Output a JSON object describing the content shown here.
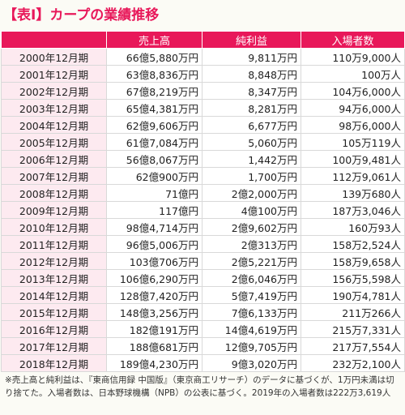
{
  "title": "【表Ⅰ】カープの業績推移",
  "headers": [
    "",
    "売上高",
    "純利益",
    "入場者数"
  ],
  "rows": [
    {
      "year": "2000年12月期",
      "sales": "66億5,880万円",
      "profit": "9,811万円",
      "attendance": "110万9,000人"
    },
    {
      "year": "2001年12月期",
      "sales": "63億8,836万円",
      "profit": "8,848万円",
      "attendance": "100万人"
    },
    {
      "year": "2002年12月期",
      "sales": "67億8,219万円",
      "profit": "8,347万円",
      "attendance": "104万6,000人"
    },
    {
      "year": "2003年12月期",
      "sales": "65億4,381万円",
      "profit": "8,281万円",
      "attendance": "94万6,000人"
    },
    {
      "year": "2004年12月期",
      "sales": "62億9,606万円",
      "profit": "6,677万円",
      "attendance": "98万6,000人"
    },
    {
      "year": "2005年12月期",
      "sales": "61億7,084万円",
      "profit": "5,060万円",
      "attendance": "105万119人"
    },
    {
      "year": "2006年12月期",
      "sales": "56億8,067万円",
      "profit": "1,442万円",
      "attendance": "100万9,481人"
    },
    {
      "year": "2007年12月期",
      "sales": "62億900万円",
      "profit": "1,700万円",
      "attendance": "112万9,061人"
    },
    {
      "year": "2008年12月期",
      "sales": "71億円",
      "profit": "2億2,000万円",
      "attendance": "139万680人"
    },
    {
      "year": "2009年12月期",
      "sales": "117億円",
      "profit": "4億100万円",
      "attendance": "187万3,046人"
    },
    {
      "year": "2010年12月期",
      "sales": "98億4,714万円",
      "profit": "2億9,602万円",
      "attendance": "160万93人"
    },
    {
      "year": "2011年12月期",
      "sales": "96億5,006万円",
      "profit": "2億313万円",
      "attendance": "158万2,524人"
    },
    {
      "year": "2012年12月期",
      "sales": "103億706万円",
      "profit": "2億5,221万円",
      "attendance": "158万9,658人"
    },
    {
      "year": "2013年12月期",
      "sales": "106億6,290万円",
      "profit": "2億6,046万円",
      "attendance": "156万5,598人"
    },
    {
      "year": "2014年12月期",
      "sales": "128億7,420万円",
      "profit": "5億7,419万円",
      "attendance": "190万4,781人"
    },
    {
      "year": "2015年12月期",
      "sales": "148億3,256万円",
      "profit": "7億6,133万円",
      "attendance": "211万266人"
    },
    {
      "year": "2016年12月期",
      "sales": "182億191万円",
      "profit": "14億4,619万円",
      "attendance": "215万7,331人"
    },
    {
      "year": "2017年12月期",
      "sales": "188億681万円",
      "profit": "12億9,705万円",
      "attendance": "217万7,554人"
    },
    {
      "year": "2018年12月期",
      "sales": "189億4,230万円",
      "profit": "9億3,020万円",
      "attendance": "232万2,100人"
    }
  ],
  "note": "※売上高と純利益は、『東商信用録 中国版』（東京商工リサーチ）のデータに基づくが、1万円未満は切り捨てた。入場者数は、日本野球機構（NPB）の公表に基づく。2019年の入場者数は222万3,619人",
  "colors": {
    "accent": "#e8185a",
    "year_cell_bg": "#fdeaf0"
  }
}
